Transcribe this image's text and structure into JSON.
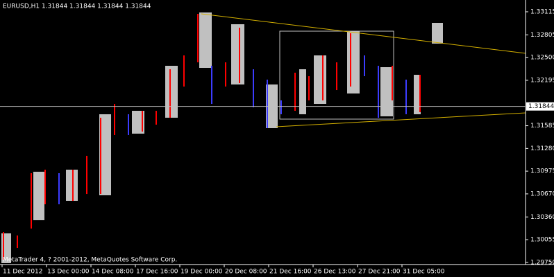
{
  "chart_data": {
    "type": "ohlc",
    "title": "EURUSD,H1  1.31844 1.31844 1.31844 1.31844",
    "footer": "MetaTrader 4, ? 2001-2012, MetaQuotes Software Corp.",
    "x_labels": [
      "11 Dec 2012",
      "13 Dec 00:00",
      "14 Dec 08:00",
      "17 Dec 16:00",
      "19 Dec 00:00",
      "20 Dec 08:00",
      "21 Dec 16:00",
      "26 Dec 13:00",
      "27 Dec 21:00",
      "31 Dec 05:00"
    ],
    "high": [
      1.30158,
      1.30111,
      1.30948,
      1.30995,
      1.30948,
      1.30995,
      1.31181,
      1.31692,
      1.31878,
      1.31739,
      1.31785,
      1.31785,
      1.32343,
      1.32529,
      1.33087,
      1.3239,
      1.32436,
      1.32901,
      1.32343,
      1.32204,
      1.31925,
      1.32297,
      1.3225,
      1.32529,
      1.32436,
      1.32827,
      1.32529,
      1.3239,
      1.3239,
      1.32204,
      1.32269
    ],
    "low": [
      1.29786,
      1.29944,
      1.30204,
      1.3053,
      1.3053,
      1.30576,
      1.30669,
      1.30669,
      1.3146,
      1.3146,
      1.31506,
      1.31599,
      1.31692,
      1.32111,
      1.32436,
      1.31878,
      1.32111,
      1.32157,
      1.31832,
      1.31553,
      1.31739,
      1.31785,
      1.31925,
      1.31925,
      1.32064,
      1.32111,
      1.3225,
      1.31692,
      1.31925,
      1.31739,
      1.31767
    ],
    "color_up": "#ff0000",
    "color_down": "#3c3cff",
    "current_price": 1.31844,
    "ylim": [
      1.29721,
      1.33273
    ],
    "yticks": [
      1.33115,
      1.32805,
      {
        "value": 1.325,
        "label": "1.32500"
      },
      1.32195,
      1.31585,
      {
        "value": 1.3128,
        "label": "1.31280"
      },
      1.30975,
      {
        "value": 1.3067,
        "label": "1.30670"
      },
      {
        "value": 1.3036,
        "label": "1.30360"
      },
      1.30055,
      {
        "value": 1.2975,
        "label": "1.29750"
      }
    ]
  }
}
